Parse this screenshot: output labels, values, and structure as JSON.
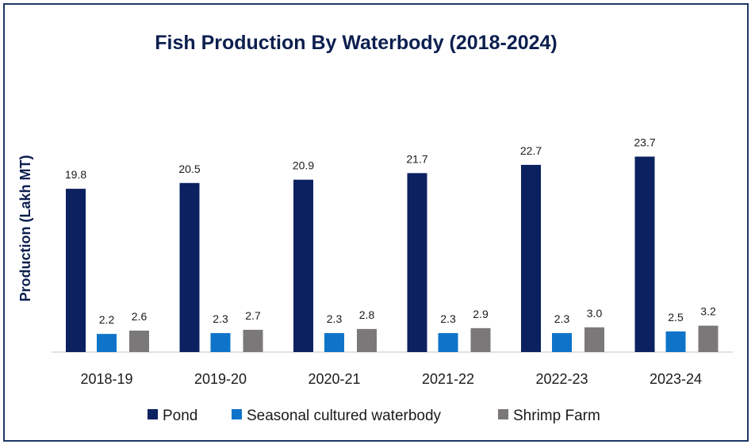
{
  "chart_data": {
    "type": "bar",
    "title": "Fish Production By Waterbody (2018-2024)",
    "xlabel": "",
    "ylabel": "Production  (Lakh MT)",
    "ylim": [
      0,
      26
    ],
    "grid": false,
    "legend": "bottom",
    "categories": [
      "2018-19",
      "2019-20",
      "2020-21",
      "2021-22",
      "2022-23",
      "2023-24"
    ],
    "series": [
      {
        "name": "Pond",
        "color": "#0b2160",
        "values": [
          19.8,
          20.5,
          20.9,
          21.7,
          22.7,
          23.7
        ],
        "labels": [
          "19.8",
          "20.5",
          "20.9",
          "21.7",
          "22.7",
          "23.7"
        ]
      },
      {
        "name": "Seasonal cultured waterbody",
        "color": "#0f74c9",
        "values": [
          2.2,
          2.3,
          2.3,
          2.3,
          2.3,
          2.5
        ],
        "labels": [
          "2.2",
          "2.3",
          "2.3",
          "2.3",
          "2.3",
          "2.5"
        ]
      },
      {
        "name": "Shrimp Farm",
        "color": "#7b7879",
        "values": [
          2.6,
          2.7,
          2.8,
          2.9,
          3.0,
          3.2
        ],
        "labels": [
          "2.6",
          "2.7",
          "2.8",
          "2.9",
          "3.0",
          "3.2"
        ]
      }
    ]
  }
}
